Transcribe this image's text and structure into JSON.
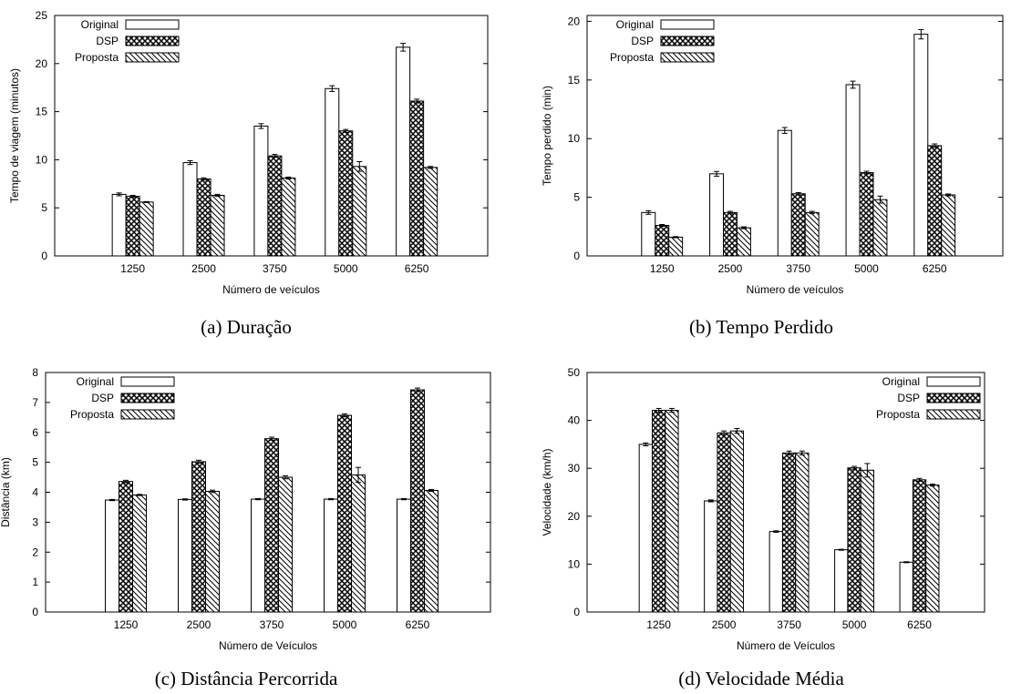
{
  "chart_data": [
    {
      "type": "bar",
      "caption": "(a) Duração",
      "xlabel": "Número de veículos",
      "ylabel": "Tempo de viagem (minutos)",
      "categories": [
        "1250",
        "2500",
        "3750",
        "5000",
        "6250"
      ],
      "ylim": [
        0,
        25
      ],
      "yticks": [
        0,
        5,
        10,
        15,
        20,
        25
      ],
      "legend_position": "top-left",
      "grid": false,
      "series": [
        {
          "name": "Original",
          "pattern": "blank",
          "values": [
            6.4,
            9.7,
            13.5,
            17.4,
            21.7
          ],
          "errors": [
            0.15,
            0.2,
            0.25,
            0.3,
            0.4
          ]
        },
        {
          "name": "DSP",
          "pattern": "crosshatch",
          "values": [
            6.2,
            8.0,
            10.4,
            13.0,
            16.1
          ],
          "errors": [
            0.1,
            0.12,
            0.15,
            0.15,
            0.2
          ]
        },
        {
          "name": "Proposta",
          "pattern": "diagonal",
          "values": [
            5.6,
            6.3,
            8.1,
            9.3,
            9.2
          ],
          "errors": [
            0.05,
            0.1,
            0.1,
            0.5,
            0.1
          ]
        }
      ]
    },
    {
      "type": "bar",
      "caption": "(b) Tempo Perdido",
      "xlabel": "Número de veículos",
      "ylabel": "Tempo perdido (min)",
      "categories": [
        "1250",
        "2500",
        "3750",
        "5000",
        "6250"
      ],
      "ylim": [
        0,
        20.5
      ],
      "yticks": [
        0,
        5,
        10,
        15,
        20
      ],
      "legend_position": "top-left",
      "grid": false,
      "series": [
        {
          "name": "Original",
          "pattern": "blank",
          "values": [
            3.7,
            7.0,
            10.7,
            14.6,
            18.9
          ],
          "errors": [
            0.15,
            0.2,
            0.25,
            0.3,
            0.4
          ]
        },
        {
          "name": "DSP",
          "pattern": "crosshatch",
          "values": [
            2.6,
            3.7,
            5.3,
            7.1,
            9.4
          ],
          "errors": [
            0.08,
            0.1,
            0.1,
            0.12,
            0.15
          ]
        },
        {
          "name": "Proposta",
          "pattern": "diagonal",
          "values": [
            1.6,
            2.4,
            3.7,
            4.8,
            5.2
          ],
          "errors": [
            0.05,
            0.08,
            0.1,
            0.3,
            0.08
          ]
        }
      ]
    },
    {
      "type": "bar",
      "caption": "(c) Distância Percorrida",
      "xlabel": "Número de Veículos",
      "ylabel": "Distância (km)",
      "categories": [
        "1250",
        "2500",
        "3750",
        "5000",
        "6250"
      ],
      "ylim": [
        0,
        8
      ],
      "yticks": [
        0,
        1,
        2,
        3,
        4,
        5,
        6,
        7,
        8
      ],
      "legend_position": "top-left",
      "grid": false,
      "series": [
        {
          "name": "Original",
          "pattern": "blank",
          "values": [
            3.74,
            3.76,
            3.77,
            3.77,
            3.77
          ],
          "errors": [
            0.02,
            0.02,
            0.02,
            0.02,
            0.02
          ]
        },
        {
          "name": "DSP",
          "pattern": "crosshatch",
          "values": [
            4.36,
            5.02,
            5.79,
            6.57,
            7.42
          ],
          "errors": [
            0.04,
            0.05,
            0.05,
            0.05,
            0.06
          ]
        },
        {
          "name": "Proposta",
          "pattern": "diagonal",
          "values": [
            3.91,
            4.03,
            4.5,
            4.58,
            4.06
          ],
          "errors": [
            0.02,
            0.04,
            0.05,
            0.25,
            0.03
          ]
        }
      ]
    },
    {
      "type": "bar",
      "caption": "(d) Velocidade Média",
      "xlabel": "Número de Veículos",
      "ylabel": "Velocidade (km/h)",
      "categories": [
        "1250",
        "2500",
        "3750",
        "5000",
        "6250"
      ],
      "ylim": [
        0,
        50
      ],
      "yticks": [
        0,
        10,
        20,
        30,
        40,
        50
      ],
      "legend_position": "top-right",
      "grid": false,
      "series": [
        {
          "name": "Original",
          "pattern": "blank",
          "values": [
            35.0,
            23.2,
            16.8,
            13.0,
            10.4
          ],
          "errors": [
            0.3,
            0.2,
            0.15,
            0.1,
            0.1
          ]
        },
        {
          "name": "DSP",
          "pattern": "crosshatch",
          "values": [
            42.1,
            37.4,
            33.2,
            30.1,
            27.6
          ],
          "errors": [
            0.4,
            0.4,
            0.4,
            0.3,
            0.3
          ]
        },
        {
          "name": "Proposta",
          "pattern": "diagonal",
          "values": [
            42.1,
            37.8,
            33.2,
            29.6,
            26.5
          ],
          "errors": [
            0.4,
            0.5,
            0.4,
            1.4,
            0.2
          ]
        }
      ]
    }
  ]
}
